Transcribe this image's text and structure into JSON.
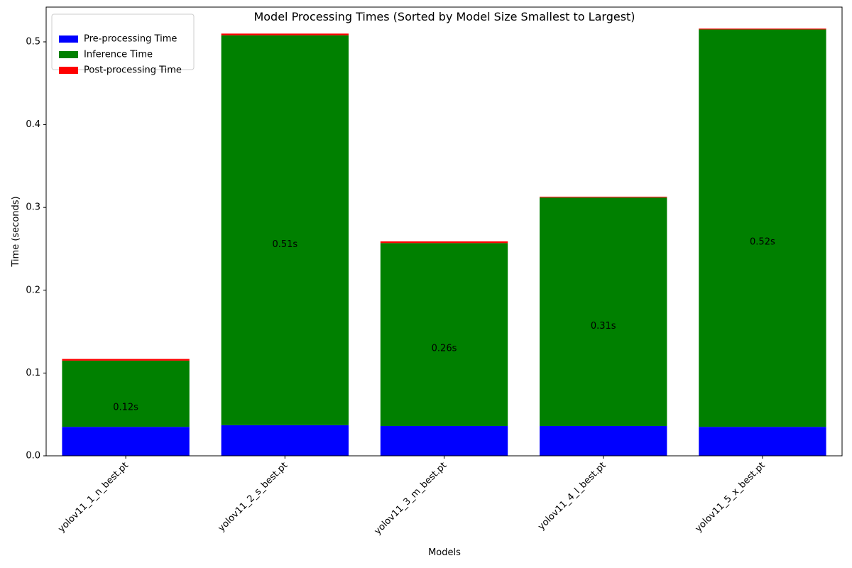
{
  "chart_data": {
    "type": "bar",
    "stacked": true,
    "title": "Model Processing Times (Sorted by Model Size Smallest to Largest)",
    "xlabel": "Models",
    "ylabel": "Time (seconds)",
    "ylim": [
      0,
      0.542
    ],
    "yticks": [
      0.0,
      0.1,
      0.2,
      0.3,
      0.4,
      0.5
    ],
    "ytick_labels": [
      "0.0",
      "0.1",
      "0.2",
      "0.3",
      "0.4",
      "0.5"
    ],
    "categories": [
      "yolov11_1_n_best.pt",
      "yolov11_2_s_best.pt",
      "yolov11_3_m_best.pt",
      "yolov11_4_l_best.pt",
      "yolov11_5_x_best.pt"
    ],
    "series": [
      {
        "name": "Pre-processing Time",
        "color": "#0000ff",
        "values": [
          0.035,
          0.037,
          0.036,
          0.036,
          0.035
        ]
      },
      {
        "name": "Inference Time",
        "color": "#008000",
        "values": [
          0.08,
          0.471,
          0.221,
          0.276,
          0.48
        ]
      },
      {
        "name": "Post-processing Time",
        "color": "#ff0000",
        "values": [
          0.002,
          0.002,
          0.002,
          0.001,
          0.001
        ]
      }
    ],
    "data_labels": [
      "0.12s",
      "0.51s",
      "0.26s",
      "0.31s",
      "0.52s"
    ],
    "legend_position": "upper-left",
    "grid": false
  }
}
